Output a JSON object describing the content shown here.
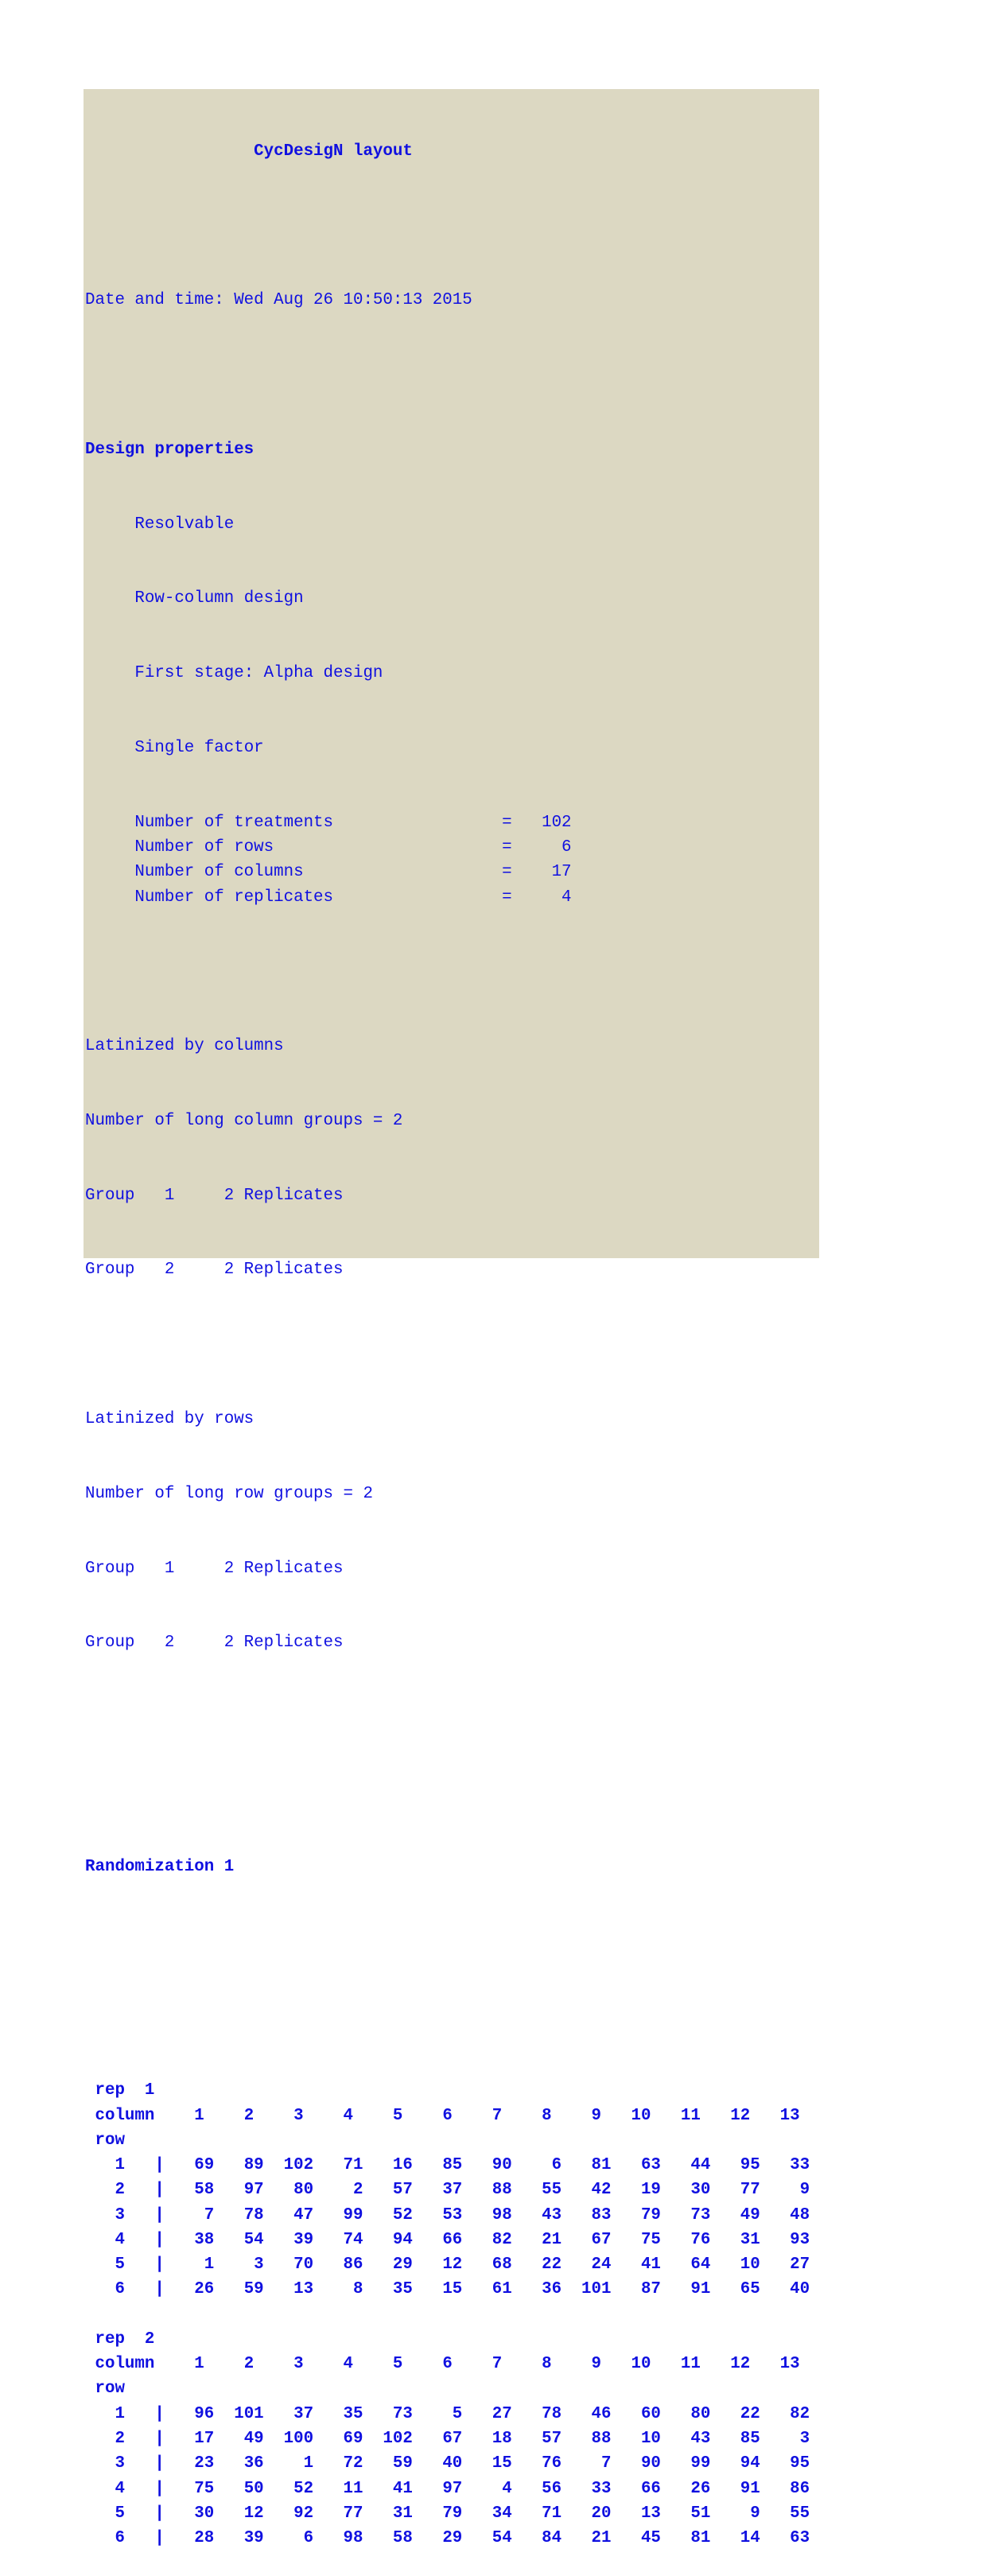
{
  "title": "CycDesigN layout",
  "datetime_line": "Date and time: Wed Aug 26 10:50:13 2015",
  "design_properties": {
    "heading": "Design properties",
    "items": [
      "Resolvable",
      "Row-column design",
      "First stage: Alpha design",
      "Single factor"
    ],
    "counts": [
      {
        "label": "Number of treatments",
        "value": "102"
      },
      {
        "label": "Number of rows",
        "value": "6"
      },
      {
        "label": "Number of columns",
        "value": "17"
      },
      {
        "label": "Number of replicates",
        "value": "4"
      }
    ]
  },
  "latinized_columns": {
    "heading": "Latinized by columns",
    "groups_line": "Number of long column groups = 2",
    "groups": [
      "Group   1     2 Replicates",
      "Group   2     2 Replicates"
    ]
  },
  "latinized_rows": {
    "heading": "Latinized by rows",
    "groups_line": "Number of long row groups = 2",
    "groups": [
      "Group   1     2 Replicates",
      "Group   2     2 Replicates"
    ]
  },
  "randomization_heading": "Randomization 1",
  "reps": [
    {
      "label": "rep  1",
      "column_label": "column",
      "row_label": "row",
      "columns": [
        1,
        2,
        3,
        4,
        5,
        6,
        7,
        8,
        9,
        10,
        11,
        12,
        13
      ],
      "rows": [
        {
          "row": 1,
          "values": [
            69,
            89,
            102,
            71,
            16,
            85,
            90,
            6,
            81,
            63,
            44,
            95,
            33
          ]
        },
        {
          "row": 2,
          "values": [
            58,
            97,
            80,
            2,
            57,
            37,
            88,
            55,
            42,
            19,
            30,
            77,
            9
          ]
        },
        {
          "row": 3,
          "values": [
            7,
            78,
            47,
            99,
            52,
            53,
            98,
            43,
            83,
            79,
            73,
            49,
            48
          ]
        },
        {
          "row": 4,
          "values": [
            38,
            54,
            39,
            74,
            94,
            66,
            82,
            21,
            67,
            75,
            76,
            31,
            93
          ]
        },
        {
          "row": 5,
          "values": [
            1,
            3,
            70,
            86,
            29,
            12,
            68,
            22,
            24,
            41,
            64,
            10,
            27
          ]
        },
        {
          "row": 6,
          "values": [
            26,
            59,
            13,
            8,
            35,
            15,
            61,
            36,
            101,
            87,
            91,
            65,
            40
          ]
        }
      ]
    },
    {
      "label": "rep  2",
      "column_label": "column",
      "row_label": "row",
      "columns": [
        1,
        2,
        3,
        4,
        5,
        6,
        7,
        8,
        9,
        10,
        11,
        12,
        13
      ],
      "rows": [
        {
          "row": 1,
          "values": [
            96,
            101,
            37,
            35,
            73,
            5,
            27,
            78,
            46,
            60,
            80,
            22,
            82
          ]
        },
        {
          "row": 2,
          "values": [
            17,
            49,
            100,
            69,
            102,
            67,
            18,
            57,
            88,
            10,
            43,
            85,
            3
          ]
        },
        {
          "row": 3,
          "values": [
            23,
            36,
            1,
            72,
            59,
            40,
            15,
            76,
            7,
            90,
            99,
            94,
            95
          ]
        },
        {
          "row": 4,
          "values": [
            75,
            50,
            52,
            11,
            41,
            97,
            4,
            56,
            33,
            66,
            26,
            91,
            86
          ]
        },
        {
          "row": 5,
          "values": [
            30,
            12,
            92,
            77,
            31,
            79,
            34,
            71,
            20,
            13,
            51,
            9,
            55
          ]
        },
        {
          "row": 6,
          "values": [
            28,
            39,
            6,
            98,
            58,
            29,
            54,
            84,
            21,
            45,
            81,
            14,
            63
          ]
        }
      ]
    }
  ],
  "colors": {
    "background": "#dcd8c2",
    "text": "#1010e0"
  }
}
